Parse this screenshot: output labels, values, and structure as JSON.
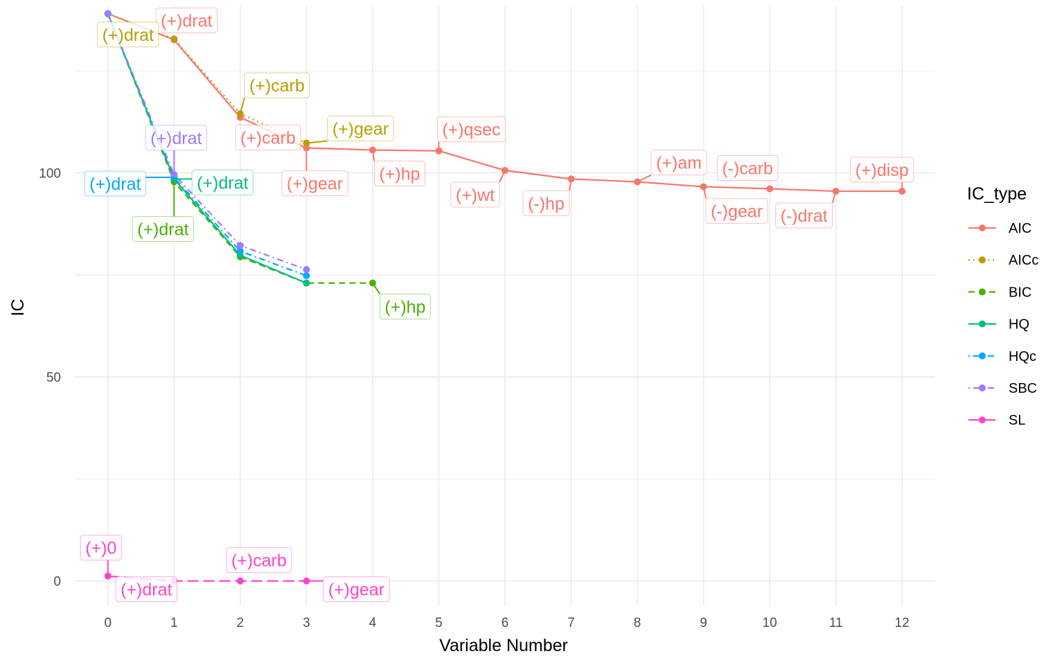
{
  "chart_data": {
    "type": "line",
    "title": "",
    "xlabel": "Variable Number",
    "ylabel": "IC",
    "xlim": [
      -0.5,
      12.5
    ],
    "ylim": [
      -6,
      141
    ],
    "x_ticks": [
      0,
      1,
      2,
      3,
      4,
      5,
      6,
      7,
      8,
      9,
      10,
      11,
      12
    ],
    "y_ticks": [
      0,
      50,
      100
    ],
    "grid": true,
    "legend": {
      "title": "IC_type",
      "placement": "right"
    },
    "series": [
      {
        "name": "AIC",
        "color": "#F8766D",
        "dash": "solid",
        "x": [
          0,
          1,
          2,
          3,
          4,
          5,
          6,
          7,
          8,
          9,
          10,
          11,
          12
        ],
        "y": [
          139,
          132.6,
          113.6,
          106.1,
          105.6,
          105.4,
          100.6,
          98.5,
          97.8,
          96.6,
          96.1,
          95.5,
          95.5
        ],
        "labels": [
          "",
          "(+)drat",
          "(+)carb",
          "(+)gear",
          "(+)hp",
          "(+)qsec",
          "(+)wt",
          "(-)hp",
          "(+)am",
          "(-)gear",
          "(-)carb",
          "(-)drat",
          "(+)disp"
        ]
      },
      {
        "name": "AICc",
        "color": "#B79F00",
        "dash": "dotted",
        "x": [
          0,
          1,
          2,
          3
        ],
        "y": [
          139,
          132.8,
          114.5,
          107.3
        ],
        "labels": [
          "(+)drat",
          "",
          "(+)carb",
          "(+)gear"
        ]
      },
      {
        "name": "BIC",
        "color": "#4DAF08",
        "dash": "dashed",
        "x": [
          0,
          1,
          2,
          3,
          4
        ],
        "y": [
          139,
          97.8,
          79.4,
          73.0,
          73.0
        ],
        "labels": [
          "",
          "(+)drat",
          "",
          "",
          "(+)hp"
        ]
      },
      {
        "name": "HQ",
        "color": "#00BF7D",
        "dash": "solid",
        "x": [
          0,
          1,
          2,
          3
        ],
        "y": [
          139,
          98.5,
          79.8,
          73.0
        ],
        "labels": [
          "",
          "(+)drat",
          "",
          ""
        ]
      },
      {
        "name": "HQc",
        "color": "#00A9FF",
        "dash": "dotdash",
        "x": [
          0,
          1,
          2,
          3
        ],
        "y": [
          139,
          98.9,
          80.8,
          74.8
        ],
        "labels": [
          "",
          "(+)drat",
          "",
          ""
        ]
      },
      {
        "name": "SBC",
        "color": "#9D7AFF",
        "dash": "dotdash",
        "x": [
          0,
          1,
          2,
          3
        ],
        "y": [
          139,
          99.6,
          82.2,
          76.3
        ],
        "labels": [
          "",
          "(+)drat",
          "",
          ""
        ]
      },
      {
        "name": "SL",
        "color": "#FF44CC",
        "dash": "longdash",
        "x": [
          0,
          1,
          2,
          3
        ],
        "y": [
          1.2,
          0.0,
          0.0,
          0.0
        ],
        "labels": [
          "(+)0",
          "(+)drat",
          "(+)carb",
          "(+)gear"
        ]
      }
    ]
  }
}
